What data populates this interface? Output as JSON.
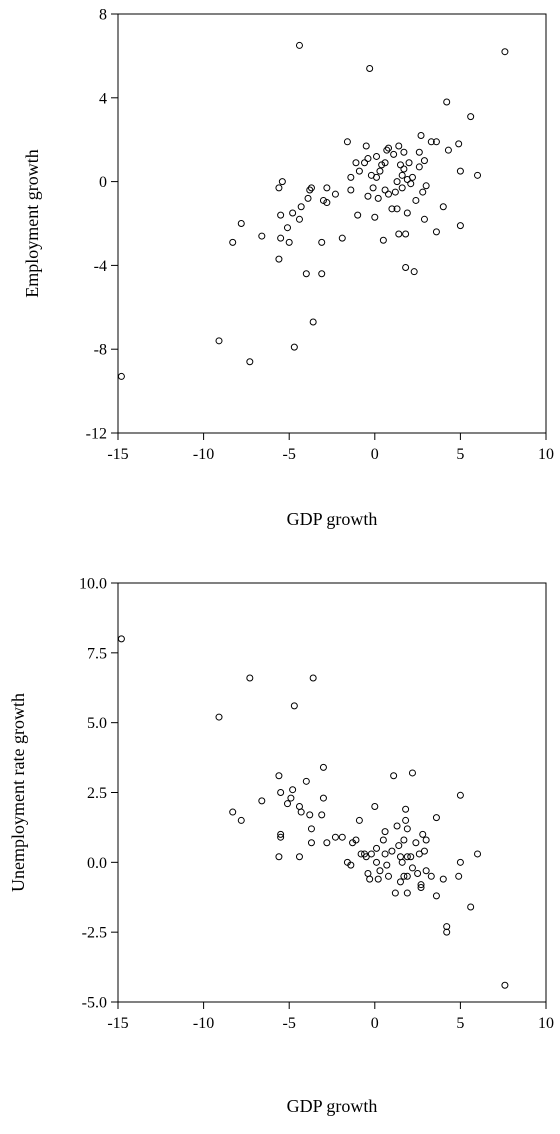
{
  "chart_data": [
    {
      "type": "scatter",
      "title": "",
      "xlabel": "GDP growth",
      "ylabel": "Employment growth",
      "xlim": [
        -15,
        10
      ],
      "ylim": [
        -12,
        8
      ],
      "xticks": [
        "-15",
        "-10",
        "-5",
        "0",
        "5",
        "10"
      ],
      "yticks": [
        "-12",
        "-8",
        "-4",
        "0",
        "4",
        "8"
      ],
      "grid": false,
      "marker": "open-circle",
      "points": [
        [
          -14.8,
          -9.3
        ],
        [
          -9.1,
          -7.6
        ],
        [
          -7.3,
          -8.6
        ],
        [
          -4.7,
          -7.9
        ],
        [
          -3.6,
          -6.7
        ],
        [
          -4.4,
          6.5
        ],
        [
          -0.3,
          5.4
        ],
        [
          7.6,
          6.2
        ],
        [
          4.2,
          3.8
        ],
        [
          5.6,
          3.1
        ],
        [
          -8.3,
          -2.9
        ],
        [
          -7.8,
          -2.0
        ],
        [
          -6.6,
          -2.6
        ],
        [
          -5.6,
          -0.3
        ],
        [
          -5.4,
          0.0
        ],
        [
          -5.5,
          -1.6
        ],
        [
          -5.5,
          -2.7
        ],
        [
          -5.6,
          -3.7
        ],
        [
          -5.1,
          -2.2
        ],
        [
          -5.0,
          -2.9
        ],
        [
          -4.8,
          -1.5
        ],
        [
          -4.4,
          -1.8
        ],
        [
          -4.3,
          -1.2
        ],
        [
          -4.0,
          -4.4
        ],
        [
          -3.9,
          -0.8
        ],
        [
          -3.8,
          -0.4
        ],
        [
          -3.7,
          -0.3
        ],
        [
          -3.1,
          -4.4
        ],
        [
          -3.1,
          -2.9
        ],
        [
          -3.0,
          -0.9
        ],
        [
          -2.8,
          -1.0
        ],
        [
          -2.8,
          -0.3
        ],
        [
          -2.3,
          -0.6
        ],
        [
          -1.9,
          -2.7
        ],
        [
          -1.6,
          1.9
        ],
        [
          -1.4,
          -0.4
        ],
        [
          -1.4,
          0.2
        ],
        [
          -1.1,
          0.9
        ],
        [
          -1.0,
          -1.6
        ],
        [
          -0.9,
          0.5
        ],
        [
          -0.6,
          0.9
        ],
        [
          -0.5,
          1.7
        ],
        [
          -0.4,
          1.1
        ],
        [
          -0.4,
          -0.7
        ],
        [
          -0.2,
          0.3
        ],
        [
          0.0,
          -1.7
        ],
        [
          0.1,
          1.2
        ],
        [
          0.1,
          0.2
        ],
        [
          0.2,
          -0.8
        ],
        [
          0.3,
          0.5
        ],
        [
          0.4,
          0.8
        ],
        [
          0.5,
          -2.8
        ],
        [
          0.6,
          0.9
        ],
        [
          0.6,
          -0.4
        ],
        [
          0.7,
          1.5
        ],
        [
          0.8,
          1.6
        ],
        [
          0.8,
          -0.6
        ],
        [
          1.0,
          -1.3
        ],
        [
          1.1,
          1.3
        ],
        [
          1.2,
          -0.5
        ],
        [
          1.3,
          -1.3
        ],
        [
          1.3,
          0.0
        ],
        [
          1.4,
          1.7
        ],
        [
          1.4,
          -2.5
        ],
        [
          1.5,
          0.8
        ],
        [
          1.6,
          0.3
        ],
        [
          1.6,
          -0.3
        ],
        [
          1.7,
          1.4
        ],
        [
          1.7,
          0.6
        ],
        [
          1.8,
          -4.1
        ],
        [
          1.8,
          -2.5
        ],
        [
          1.9,
          -1.5
        ],
        [
          1.9,
          0.1
        ],
        [
          2.0,
          0.9
        ],
        [
          2.1,
          -0.1
        ],
        [
          2.2,
          0.2
        ],
        [
          2.3,
          -4.3
        ],
        [
          2.4,
          -0.9
        ],
        [
          2.6,
          0.7
        ],
        [
          2.6,
          1.4
        ],
        [
          2.7,
          2.2
        ],
        [
          2.8,
          -0.5
        ],
        [
          2.9,
          -1.8
        ],
        [
          2.9,
          1.0
        ],
        [
          3.0,
          -0.2
        ],
        [
          3.3,
          1.9
        ],
        [
          3.6,
          1.9
        ],
        [
          3.6,
          -2.4
        ],
        [
          4.0,
          -1.2
        ],
        [
          4.3,
          1.5
        ],
        [
          4.9,
          1.8
        ],
        [
          5.0,
          0.5
        ],
        [
          5.0,
          -2.1
        ],
        [
          6.0,
          0.3
        ],
        [
          -0.1,
          -0.3
        ]
      ]
    },
    {
      "type": "scatter",
      "title": "",
      "xlabel": "GDP growth",
      "ylabel": "Unemployment rate growth",
      "xlim": [
        -15,
        10
      ],
      "ylim": [
        -5,
        10
      ],
      "xticks": [
        "-15",
        "-10",
        "-5",
        "0",
        "5",
        "10"
      ],
      "yticks": [
        "-5.0",
        "-2.5",
        "0.0",
        "2.5",
        "5.0",
        "7.5",
        "10.0"
      ],
      "grid": false,
      "marker": "open-circle",
      "points": [
        [
          -14.8,
          8.0
        ],
        [
          -9.1,
          5.2
        ],
        [
          -7.3,
          6.6
        ],
        [
          -3.6,
          6.6
        ],
        [
          -4.7,
          5.6
        ],
        [
          7.6,
          -4.4
        ],
        [
          4.2,
          -2.5
        ],
        [
          4.2,
          -2.3
        ],
        [
          5.6,
          -1.6
        ],
        [
          5.0,
          2.4
        ],
        [
          -8.3,
          1.8
        ],
        [
          -7.8,
          1.5
        ],
        [
          -6.6,
          2.2
        ],
        [
          -5.6,
          3.1
        ],
        [
          -5.5,
          2.5
        ],
        [
          -5.5,
          1.0
        ],
        [
          -5.5,
          0.9
        ],
        [
          -5.6,
          0.2
        ],
        [
          -5.1,
          2.1
        ],
        [
          -4.9,
          2.3
        ],
        [
          -4.8,
          2.6
        ],
        [
          -4.4,
          2.0
        ],
        [
          -4.3,
          1.8
        ],
        [
          -4.4,
          0.2
        ],
        [
          -4.0,
          2.9
        ],
        [
          -3.8,
          1.7
        ],
        [
          -3.7,
          1.2
        ],
        [
          -3.7,
          0.7
        ],
        [
          -3.0,
          3.4
        ],
        [
          -3.0,
          2.3
        ],
        [
          -3.1,
          1.7
        ],
        [
          -2.8,
          0.7
        ],
        [
          -2.3,
          0.9
        ],
        [
          -1.9,
          0.9
        ],
        [
          -1.6,
          0.0
        ],
        [
          -1.4,
          -0.1
        ],
        [
          -1.3,
          0.7
        ],
        [
          -1.1,
          0.8
        ],
        [
          -0.9,
          1.5
        ],
        [
          -0.8,
          0.3
        ],
        [
          -0.6,
          0.3
        ],
        [
          -0.5,
          0.2
        ],
        [
          -0.4,
          -0.4
        ],
        [
          -0.3,
          -0.6
        ],
        [
          -0.2,
          0.3
        ],
        [
          0.0,
          2.0
        ],
        [
          0.1,
          0.5
        ],
        [
          0.1,
          0.0
        ],
        [
          0.2,
          -0.6
        ],
        [
          0.3,
          -0.3
        ],
        [
          0.5,
          0.8
        ],
        [
          0.6,
          1.1
        ],
        [
          0.6,
          0.3
        ],
        [
          0.7,
          -0.1
        ],
        [
          0.8,
          -0.5
        ],
        [
          1.0,
          0.4
        ],
        [
          1.1,
          3.1
        ],
        [
          1.2,
          -1.1
        ],
        [
          1.3,
          1.3
        ],
        [
          1.4,
          0.6
        ],
        [
          1.5,
          0.2
        ],
        [
          1.5,
          -0.7
        ],
        [
          1.6,
          0.0
        ],
        [
          1.7,
          0.8
        ],
        [
          1.7,
          -0.5
        ],
        [
          1.8,
          1.9
        ],
        [
          1.8,
          1.5
        ],
        [
          1.9,
          1.2
        ],
        [
          1.9,
          0.2
        ],
        [
          1.9,
          -0.5
        ],
        [
          1.9,
          -1.1
        ],
        [
          2.1,
          0.2
        ],
        [
          2.2,
          -0.2
        ],
        [
          2.2,
          3.2
        ],
        [
          2.4,
          0.7
        ],
        [
          2.5,
          -0.4
        ],
        [
          2.6,
          0.3
        ],
        [
          2.7,
          -0.8
        ],
        [
          2.7,
          -0.9
        ],
        [
          2.8,
          1.0
        ],
        [
          2.9,
          0.4
        ],
        [
          3.0,
          0.8
        ],
        [
          3.0,
          -0.3
        ],
        [
          3.3,
          -0.5
        ],
        [
          3.6,
          1.6
        ],
        [
          3.6,
          -1.2
        ],
        [
          4.0,
          -0.6
        ],
        [
          4.9,
          -0.5
        ],
        [
          5.0,
          0.0
        ],
        [
          6.0,
          0.3
        ]
      ]
    }
  ]
}
